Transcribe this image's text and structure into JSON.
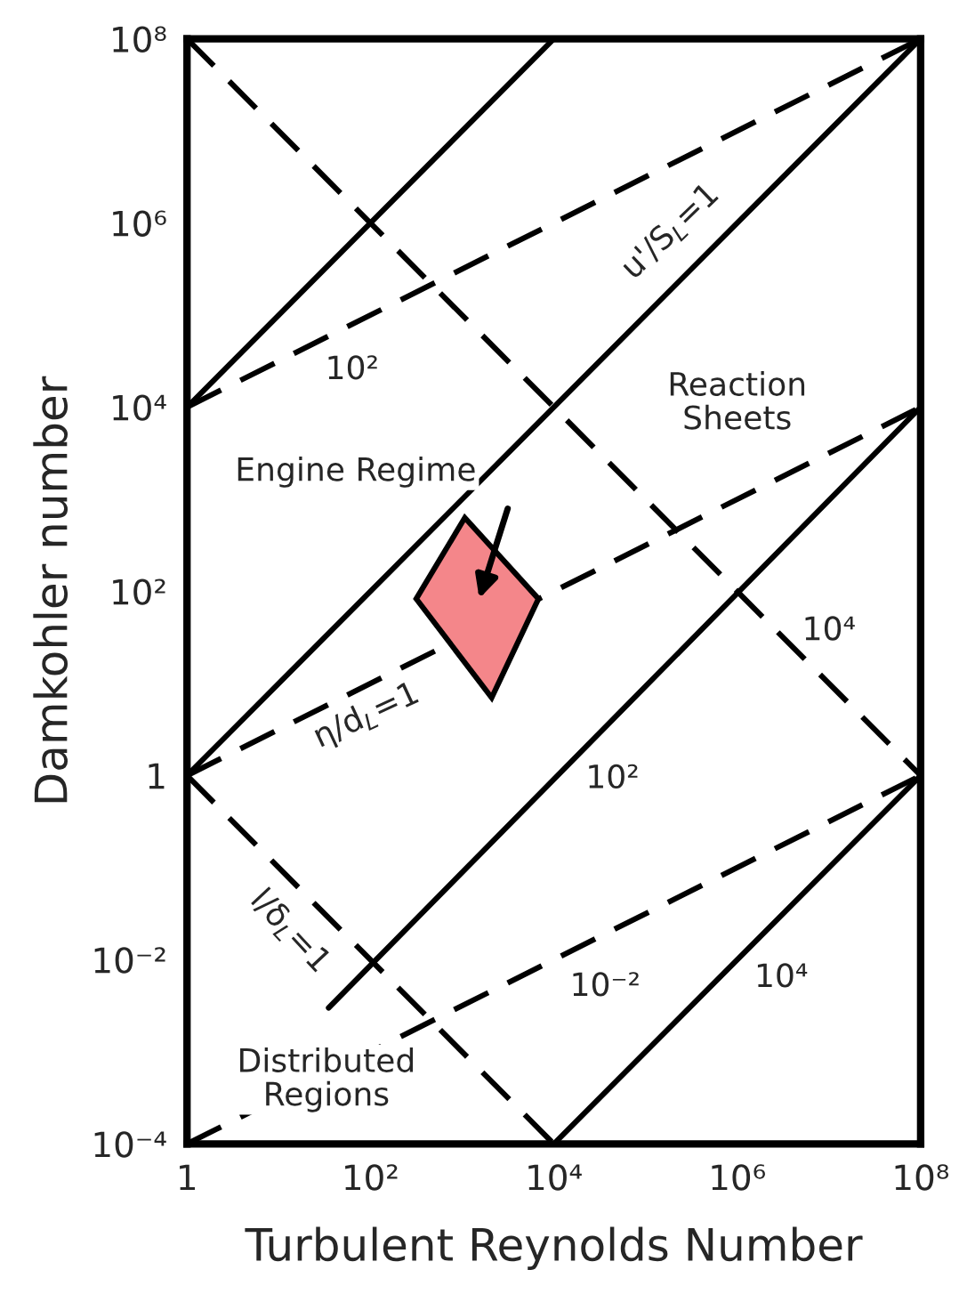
{
  "chart_data": {
    "type": "line",
    "xlabel": "Turbulent Reynolds Number",
    "ylabel": "Damkohler number",
    "log": "xy",
    "grid": false,
    "legend": false,
    "marker": "none",
    "xlim": [
      1,
      100000000
    ],
    "ylim": [
      0.0001,
      100000000
    ],
    "xticks": [
      1,
      {
        "value": 100,
        "label": "10²"
      },
      {
        "value": 10000,
        "label": "10⁴"
      },
      {
        "value": 1000000,
        "label": "10⁶"
      },
      {
        "value": 100000000,
        "label": "10⁸"
      }
    ],
    "yticks": [
      {
        "value": 0.0001,
        "label": "10⁻⁴"
      },
      {
        "value": 0.01,
        "label": "10⁻²"
      },
      1,
      {
        "value": 100,
        "label": "10²"
      },
      {
        "value": 10000,
        "label": "10⁴"
      },
      {
        "value": 1000000,
        "label": "10⁶"
      },
      {
        "value": 100000000,
        "label": "10⁸"
      }
    ],
    "series": [
      {
        "line_style": "solid",
        "color": "#000000",
        "x": [
          1,
          10000
        ],
        "values": [
          10000,
          100000000
        ]
      },
      {
        "line_style": "solid",
        "color": "#000000",
        "x": [
          1,
          100000000
        ],
        "values": [
          1,
          100000000
        ]
      },
      {
        "line_style": "solid",
        "color": "#000000",
        "x": [
          35,
          100000000
        ],
        "values": [
          0.003,
          10000
        ]
      },
      {
        "line_style": "solid",
        "color": "#000000",
        "x": [
          10000,
          100000000
        ],
        "values": [
          0.0001,
          1
        ]
      },
      {
        "line_style": "dashed",
        "color": "#000000",
        "x": [
          1,
          100000000
        ],
        "values": [
          10000,
          100000000
        ]
      },
      {
        "line_style": "dashed",
        "color": "#000000",
        "x": [
          1,
          100000000
        ],
        "values": [
          1,
          10000
        ]
      },
      {
        "line_style": "dashed",
        "color": "#000000",
        "x": [
          1,
          100000000
        ],
        "values": [
          0.0001,
          1
        ]
      },
      {
        "line_style": "dashed",
        "color": "#000000",
        "x": [
          1,
          100000000
        ],
        "values": [
          100000000,
          1
        ]
      },
      {
        "line_style": "dashed",
        "color": "#000000",
        "x": [
          1,
          10000
        ],
        "values": [
          1,
          0.0001
        ]
      },
      {
        "type": "area",
        "color": "#f4868a",
        "x": [
          1070,
          6800,
          2100,
          316,
          1070
        ],
        "values": [
          630,
          83,
          7,
          83,
          630
        ]
      }
    ],
    "annotations": [
      "10²",
      "u'/S$_{L}$=1",
      "Reaction\nSheets",
      "Engine Regime",
      "10⁴",
      "η/d$_{L}$=1",
      "10²",
      "l/δ$_{L}$=1",
      "10⁻²",
      "10⁴",
      "Distributed\nRegions"
    ]
  }
}
